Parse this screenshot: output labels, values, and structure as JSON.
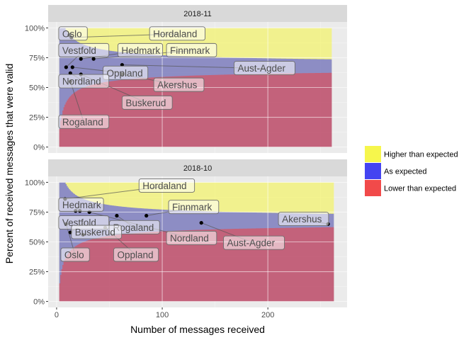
{
  "chart_data": {
    "type": "area",
    "xlabel": "Number of messages received",
    "ylabel": "Percent of received messages that were valid",
    "x_ticks": [
      0,
      100,
      200
    ],
    "y_ticks": [
      "0%",
      "25%",
      "50%",
      "75%",
      "100%"
    ],
    "xlim": [
      -8,
      275
    ],
    "ylim": [
      -0.05,
      1.05
    ],
    "legend": {
      "position": "right",
      "items": [
        {
          "label": "Higher than expected",
          "color": "#f5f542"
        },
        {
          "label": "As expected",
          "color": "#3a3af0"
        },
        {
          "label": "Lower than expected",
          "color": "#f04040"
        }
      ]
    },
    "panels": [
      {
        "strip": "2018-11",
        "band_n": 260,
        "points": [
          {
            "name": "Oslo",
            "x": 12,
            "y": 0.94
          },
          {
            "name": "Hordaland",
            "x": 14,
            "y": 0.92
          },
          {
            "name": "Vestfold",
            "x": 9,
            "y": 0.67
          },
          {
            "name": "Hedmark",
            "x": 23,
            "y": 0.74
          },
          {
            "name": "Finnmark",
            "x": 35,
            "y": 0.74
          },
          {
            "name": "Aust-Agder",
            "x": 62,
            "y": 0.69
          },
          {
            "name": "Oppland",
            "x": 15,
            "y": 0.67
          },
          {
            "name": "Nordland",
            "x": 13,
            "y": 0.62
          },
          {
            "name": "Akershus",
            "x": 62,
            "y": 0.61
          },
          {
            "name": "Buskerud",
            "x": 23,
            "y": 0.61
          },
          {
            "name": "Rogaland",
            "x": 13,
            "y": 0.55
          }
        ],
        "labels": [
          {
            "name": "Oslo",
            "lx": 2,
            "ly": 0.95
          },
          {
            "name": "Hordaland",
            "lx": 88,
            "ly": 0.95
          },
          {
            "name": "Vestfold",
            "lx": 2,
            "ly": 0.81
          },
          {
            "name": "Hedmark",
            "lx": 58,
            "ly": 0.81
          },
          {
            "name": "Finnmark",
            "lx": 104,
            "ly": 0.81
          },
          {
            "name": "Aust-Agder",
            "lx": 168,
            "ly": 0.66
          },
          {
            "name": "Oppland",
            "lx": 44,
            "ly": 0.62
          },
          {
            "name": "Nordland",
            "lx": 2,
            "ly": 0.55
          },
          {
            "name": "Akershus",
            "lx": 92,
            "ly": 0.52
          },
          {
            "name": "Buskerud",
            "lx": 62,
            "ly": 0.37
          },
          {
            "name": "Rogaland",
            "lx": 2,
            "ly": 0.21
          }
        ]
      },
      {
        "strip": "2018-10",
        "band_n": 262,
        "points": [
          {
            "name": "Hordaland",
            "x": 8,
            "y": 0.86
          },
          {
            "name": "Hedmark",
            "x": 18,
            "y": 0.76
          },
          {
            "name": "Hedmark-2",
            "x": 22,
            "y": 0.76
          },
          {
            "name": "Finnmark",
            "x": 85,
            "y": 0.72
          },
          {
            "name": "Akershus",
            "x": 257,
            "y": 0.65
          },
          {
            "name": "Vestfold",
            "x": 13,
            "y": 0.58
          },
          {
            "name": "Buskerud",
            "x": 25,
            "y": 0.56
          },
          {
            "name": "Rogaland",
            "x": 57,
            "y": 0.72
          },
          {
            "name": "Nordland",
            "x": 31,
            "y": 0.75
          },
          {
            "name": "Aust-Agder",
            "x": 137,
            "y": 0.66
          },
          {
            "name": "Oslo",
            "x": 9,
            "y": 0.65
          },
          {
            "name": "Oppland",
            "x": 46,
            "y": 0.62
          }
        ],
        "labels": [
          {
            "name": "Hordaland",
            "lx": 78,
            "ly": 0.97
          },
          {
            "name": "Hedmark",
            "lx": 2,
            "ly": 0.81
          },
          {
            "name": "Finnmark",
            "lx": 106,
            "ly": 0.79
          },
          {
            "name": "Akershus",
            "lx": 210,
            "ly": 0.69
          },
          {
            "name": "Vestfold",
            "lx": 2,
            "ly": 0.66
          },
          {
            "name": "Rogaland",
            "lx": 50,
            "ly": 0.62
          },
          {
            "name": "Buskerud",
            "lx": 14,
            "ly": 0.58
          },
          {
            "name": "Nordland",
            "lx": 104,
            "ly": 0.53
          },
          {
            "name": "Aust-Agder",
            "lx": 158,
            "ly": 0.49
          },
          {
            "name": "Oslo",
            "lx": 4,
            "ly": 0.39
          },
          {
            "name": "Oppland",
            "lx": 54,
            "ly": 0.39
          }
        ]
      }
    ]
  }
}
